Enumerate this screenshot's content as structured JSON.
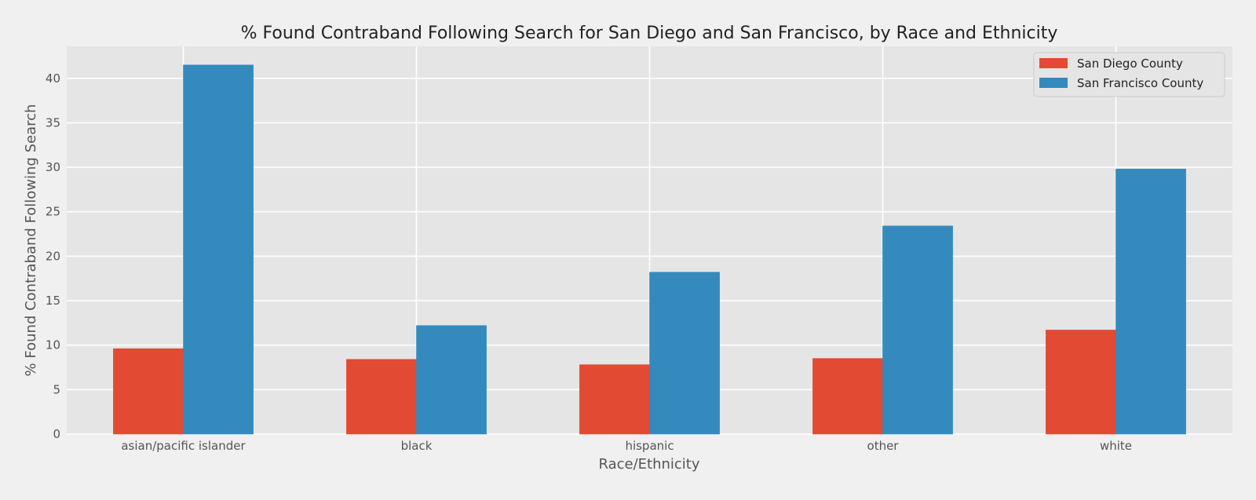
{
  "chart_data": {
    "type": "bar",
    "title": "% Found Contraband Following Search for San Diego and San Francisco, by Race and Ethnicity",
    "xlabel": "Race/Ethnicity",
    "ylabel": "% Found Contraband Following Search",
    "categories": [
      "asian/pacific islander",
      "black",
      "hispanic",
      "other",
      "white"
    ],
    "series": [
      {
        "name": "San Diego County",
        "color": "#e24a33",
        "values": [
          9.6,
          8.4,
          7.8,
          8.5,
          11.7
        ]
      },
      {
        "name": "San Francisco County",
        "color": "#348abd",
        "values": [
          41.5,
          12.2,
          18.2,
          23.4,
          29.8
        ]
      }
    ],
    "ylim": [
      0,
      43.6
    ],
    "yticks": [
      0,
      5,
      10,
      15,
      20,
      25,
      30,
      35,
      40
    ],
    "grid": true,
    "legend_position": "top-right",
    "background_color": "#e5e5e5",
    "figure_color": "#f0f0f0"
  }
}
